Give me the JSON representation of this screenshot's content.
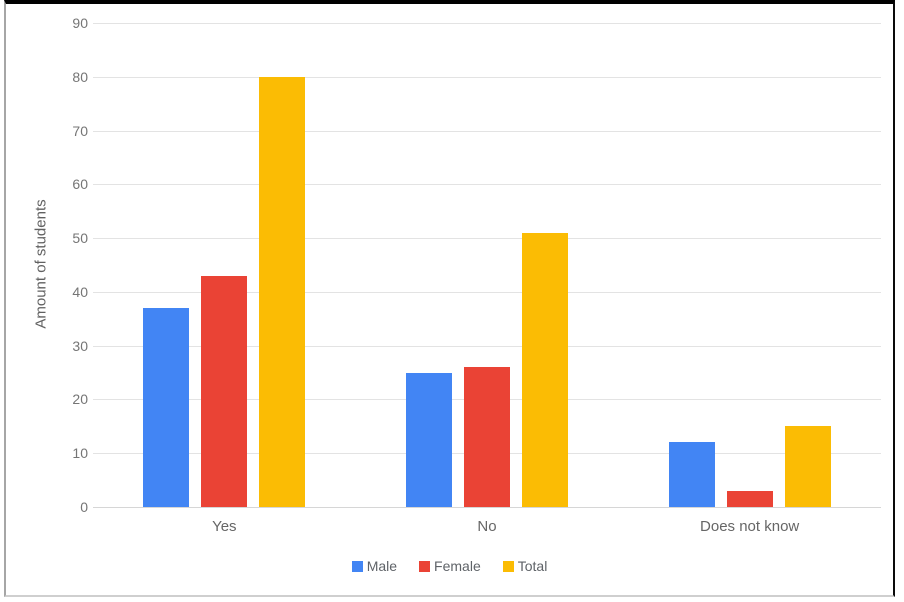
{
  "chart_data": {
    "type": "bar",
    "title": "",
    "categories": [
      "Yes",
      "No",
      "Does not know"
    ],
    "series": [
      {
        "name": "Male",
        "color": "#4285f4",
        "values": [
          37,
          25,
          12
        ]
      },
      {
        "name": "Female",
        "color": "#ea4335",
        "values": [
          43,
          26,
          3
        ]
      },
      {
        "name": "Total",
        "color": "#fbbc04",
        "values": [
          80,
          51,
          15
        ]
      }
    ],
    "xlabel": "",
    "ylabel": "Amount of students",
    "ylim": [
      0,
      90
    ],
    "ytick_step": 10,
    "grid": true,
    "legend_position": "bottom",
    "legend_labels": [
      "Male",
      "Female",
      "Total"
    ]
  }
}
